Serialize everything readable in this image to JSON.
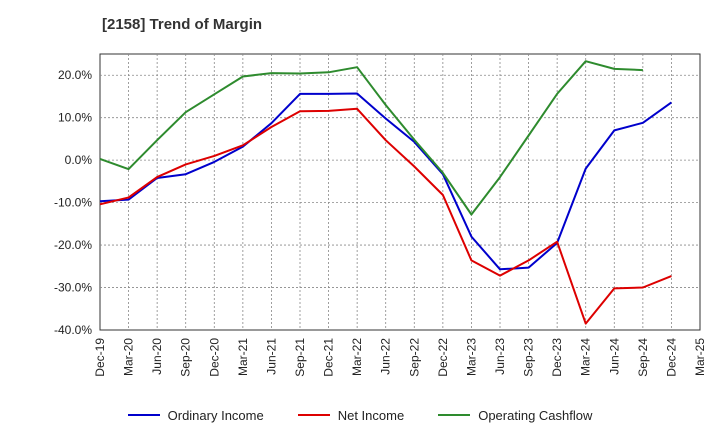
{
  "chart_data": {
    "type": "line",
    "title": "[2158]  Trend of Margin",
    "xlabel": "",
    "ylabel": "",
    "categories": [
      "Dec-19",
      "Mar-20",
      "Jun-20",
      "Sep-20",
      "Dec-20",
      "Mar-21",
      "Jun-21",
      "Sep-21",
      "Dec-21",
      "Mar-22",
      "Jun-22",
      "Sep-22",
      "Dec-22",
      "Mar-23",
      "Jun-23",
      "Sep-23",
      "Dec-23",
      "Mar-24",
      "Jun-24",
      "Sep-24",
      "Dec-24",
      "Mar-25"
    ],
    "ylim": [
      -40,
      25
    ],
    "yticks": [
      20,
      10,
      0,
      -10,
      -20,
      -30,
      -40
    ],
    "ytick_labels": [
      "20.0%",
      "10.0%",
      "0.0%",
      "-10.0%",
      "-20.0%",
      "-30.0%",
      "-40.0%"
    ],
    "grid": true,
    "legend_position": "bottom",
    "series": [
      {
        "name": "Ordinary Income",
        "color": "#0000cc",
        "values": [
          -9.7,
          -9.3,
          -4.2,
          -3.3,
          -0.4,
          3.2,
          8.7,
          15.6,
          15.6,
          15.7,
          9.8,
          4.3,
          -3.3,
          -18.0,
          -25.7,
          -25.3,
          -19.5,
          -2.0,
          7.0,
          8.8,
          13.6,
          null
        ]
      },
      {
        "name": "Net Income",
        "color": "#dd0000",
        "values": [
          -10.4,
          -8.8,
          -4.0,
          -1.0,
          1.0,
          3.5,
          7.8,
          11.5,
          11.6,
          12.1,
          4.7,
          -1.5,
          -8.2,
          -23.6,
          -27.2,
          -23.6,
          -19.2,
          -38.5,
          -30.2,
          -30.0,
          -27.3,
          null
        ]
      },
      {
        "name": "Operating Cashflow",
        "color": "#2e8b2e",
        "values": [
          0.3,
          -2.1,
          4.7,
          11.3,
          15.5,
          19.7,
          20.5,
          20.4,
          20.7,
          21.9,
          13.0,
          4.8,
          -3.0,
          -12.8,
          -4.0,
          5.8,
          15.6,
          23.3,
          21.5,
          21.2,
          null,
          null
        ]
      }
    ]
  }
}
